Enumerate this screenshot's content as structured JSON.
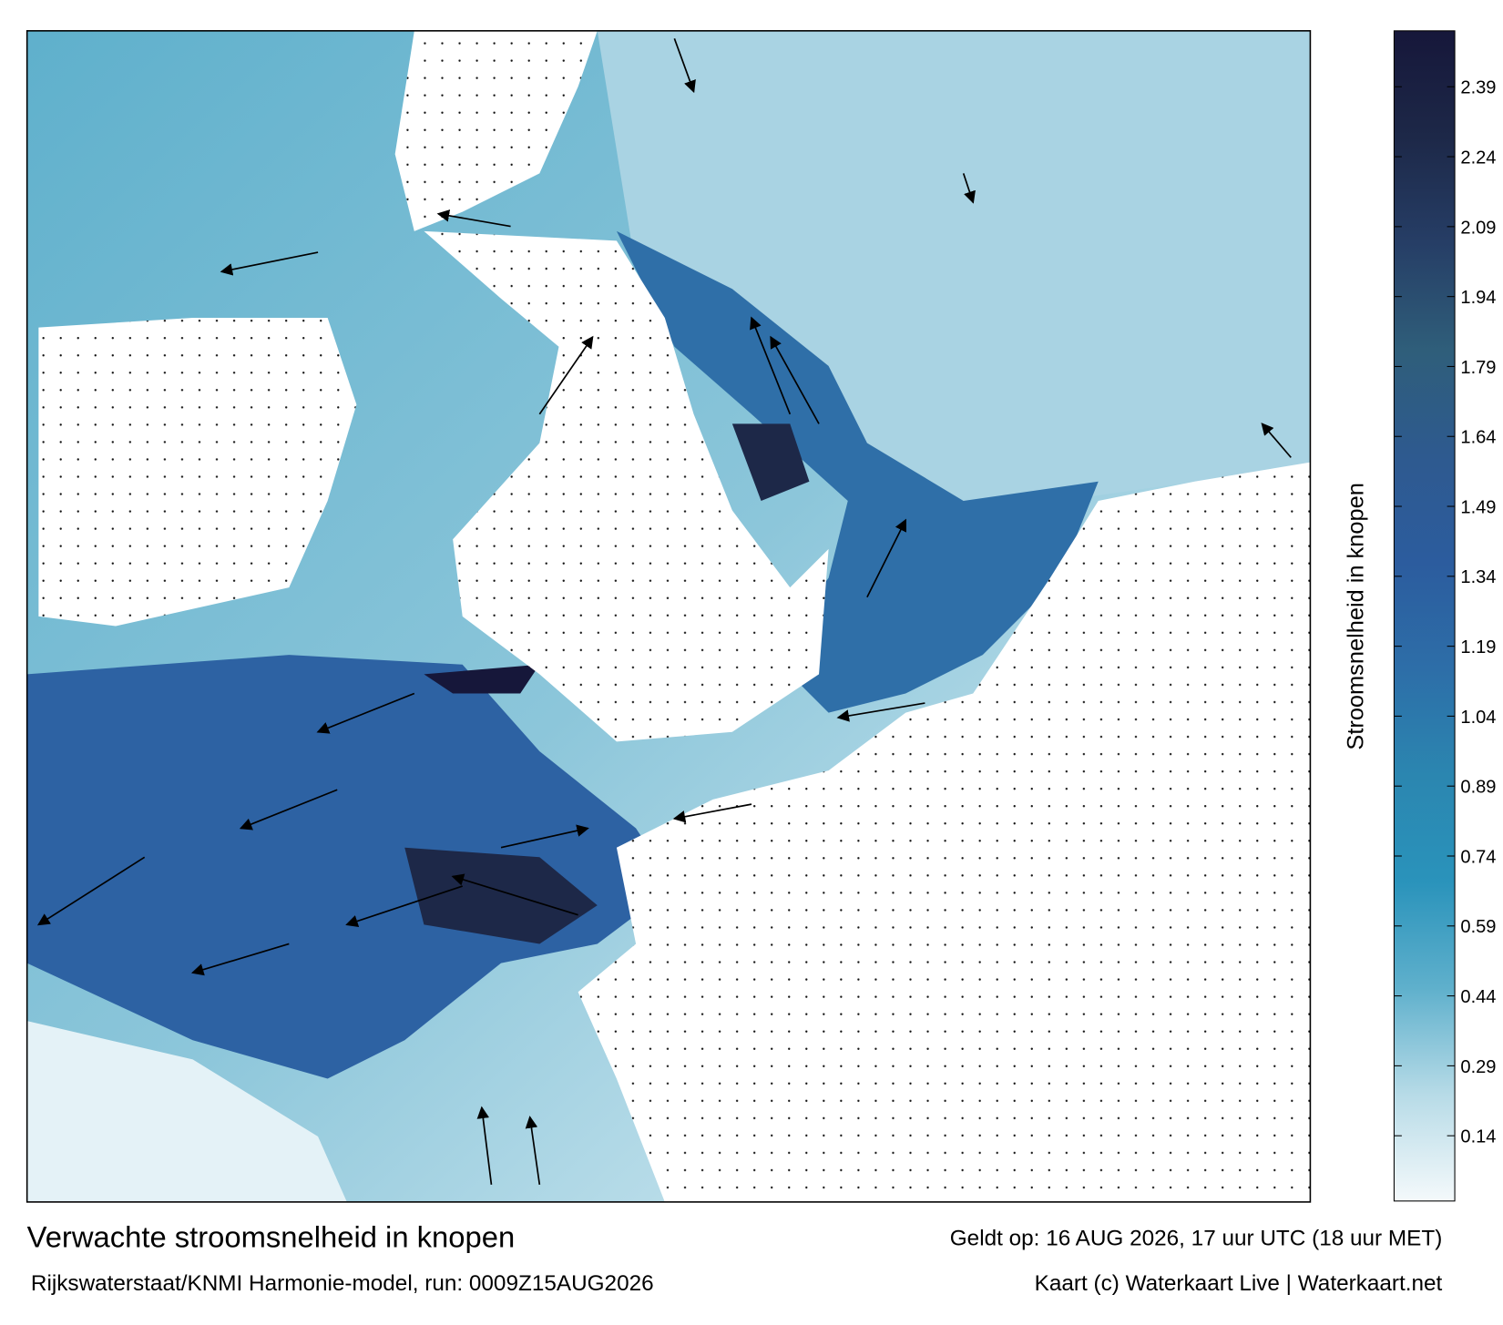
{
  "map": {
    "title": "Verwachte stroomsnelheid in knopen",
    "valid_time": "Geldt op: 16 AUG 2026, 17 uur UTC (18 uur MET)",
    "source": "Rijkswaterstaat/KNMI Harmonie-model, run: 0009Z15AUG2026",
    "credit": "Kaart (c) Waterkaart Live | Waterkaart.net",
    "colorbar": {
      "label": "Stroomsnelheid in knopen",
      "lim": [
        0,
        2.51
      ],
      "ticks": [
        0.14,
        0.29,
        0.44,
        0.59,
        0.74,
        0.89,
        1.04,
        1.19,
        1.34,
        1.49,
        1.64,
        1.79,
        1.94,
        2.09,
        2.24,
        2.39
      ],
      "colors": [
        "#f4f9fb",
        "#b7dbe7",
        "#5fb0cc",
        "#2a93bb",
        "#2b86b0",
        "#2d6ea8",
        "#2c5c9e",
        "#2e5a8f",
        "#2f5e7a",
        "#263e66",
        "#1d2848",
        "#16173a"
      ]
    }
  }
}
